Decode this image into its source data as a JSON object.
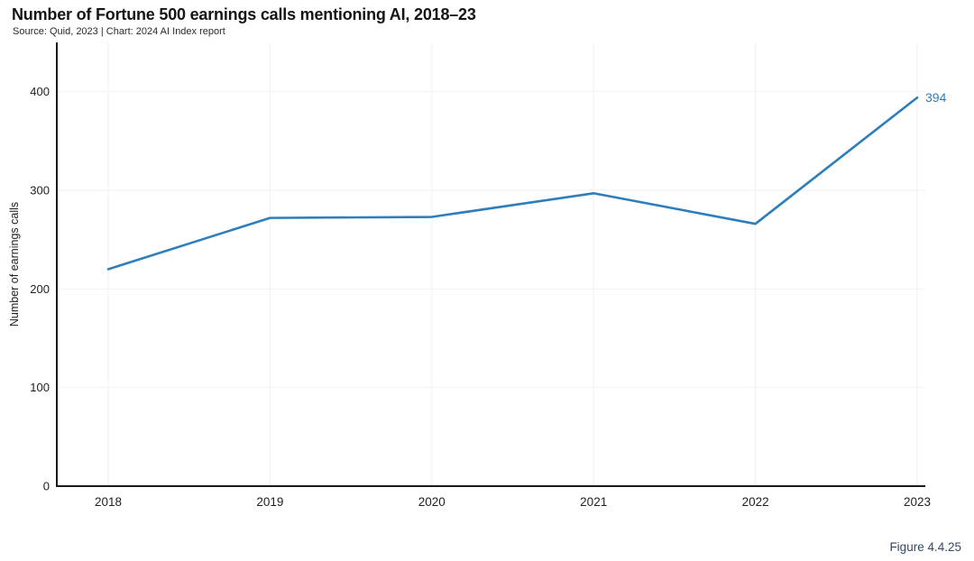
{
  "header": {
    "title": "Number of Fortune 500 earnings calls mentioning AI, 2018–23",
    "subtitle": "Source: Quid, 2023 | Chart: 2024 AI Index report"
  },
  "chart_data": {
    "type": "line",
    "title": "Number of Fortune 500 earnings calls mentioning AI, 2018–23",
    "subtitle": "Source: Quid, 2023 | Chart: 2024 AI Index report",
    "categories": [
      "2018",
      "2019",
      "2020",
      "2021",
      "2022",
      "2023"
    ],
    "series": [
      {
        "name": "Number of earnings calls",
        "values": [
          220,
          272,
          273,
          297,
          266,
          394
        ]
      }
    ],
    "end_label": "394",
    "xlabel": "",
    "ylabel": "Number of earnings calls",
    "ylim": [
      0,
      450
    ],
    "yticks": [
      0,
      100,
      200,
      300,
      400
    ],
    "grid": true,
    "legend_position": "none"
  },
  "footer": {
    "figure_label": "Figure 4.4.25"
  },
  "colors": {
    "line": "#2e7ebc",
    "end_label": "#2e7ebc",
    "axis": "#1a1a1a",
    "grid": "#f2f2f2",
    "tick_text": "#1f1f1f",
    "figure_label": "#344a5e"
  }
}
